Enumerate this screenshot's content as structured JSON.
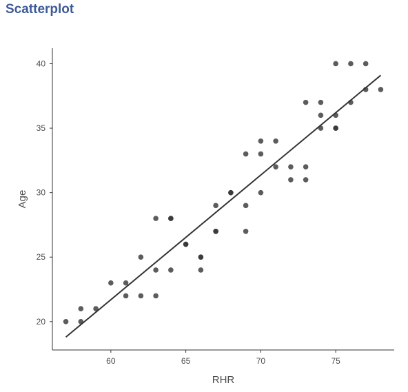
{
  "header": {
    "title": "Scatterplot"
  },
  "chart_data": {
    "type": "scatter",
    "xlabel": "RHR",
    "ylabel": "Age",
    "xlim": [
      56.1,
      78.9
    ],
    "ylim": [
      17.8,
      41.2
    ],
    "xticks": [
      60,
      65,
      70,
      75
    ],
    "yticks": [
      20,
      25,
      30,
      35,
      40
    ],
    "grid": false,
    "legend": "none",
    "point_color": "#333333",
    "line_color": "#333333",
    "points": [
      {
        "x": 57,
        "y": 20
      },
      {
        "x": 58,
        "y": 21
      },
      {
        "x": 58,
        "y": 20
      },
      {
        "x": 59,
        "y": 21
      },
      {
        "x": 60,
        "y": 23
      },
      {
        "x": 61,
        "y": 23
      },
      {
        "x": 61,
        "y": 22
      },
      {
        "x": 62,
        "y": 25
      },
      {
        "x": 62,
        "y": 22
      },
      {
        "x": 63,
        "y": 28
      },
      {
        "x": 63,
        "y": 24
      },
      {
        "x": 63,
        "y": 22
      },
      {
        "x": 64,
        "y": 28
      },
      {
        "x": 64,
        "y": 28
      },
      {
        "x": 64,
        "y": 24
      },
      {
        "x": 65,
        "y": 26
      },
      {
        "x": 65,
        "y": 26
      },
      {
        "x": 66,
        "y": 25
      },
      {
        "x": 66,
        "y": 25
      },
      {
        "x": 66,
        "y": 24
      },
      {
        "x": 67,
        "y": 29
      },
      {
        "x": 67,
        "y": 27
      },
      {
        "x": 67,
        "y": 27
      },
      {
        "x": 68,
        "y": 30
      },
      {
        "x": 68,
        "y": 30
      },
      {
        "x": 69,
        "y": 33
      },
      {
        "x": 69,
        "y": 29
      },
      {
        "x": 69,
        "y": 27
      },
      {
        "x": 70,
        "y": 34
      },
      {
        "x": 70,
        "y": 33
      },
      {
        "x": 70,
        "y": 30
      },
      {
        "x": 71,
        "y": 34
      },
      {
        "x": 71,
        "y": 32
      },
      {
        "x": 72,
        "y": 32
      },
      {
        "x": 72,
        "y": 31
      },
      {
        "x": 73,
        "y": 37
      },
      {
        "x": 73,
        "y": 32
      },
      {
        "x": 73,
        "y": 31
      },
      {
        "x": 74,
        "y": 37
      },
      {
        "x": 74,
        "y": 36
      },
      {
        "x": 74,
        "y": 35
      },
      {
        "x": 75,
        "y": 40
      },
      {
        "x": 75,
        "y": 36
      },
      {
        "x": 75,
        "y": 35
      },
      {
        "x": 75,
        "y": 35
      },
      {
        "x": 76,
        "y": 40
      },
      {
        "x": 76,
        "y": 37
      },
      {
        "x": 77,
        "y": 40
      },
      {
        "x": 77,
        "y": 38
      },
      {
        "x": 78,
        "y": 38
      }
    ],
    "trend_line": {
      "type": "linear",
      "start": {
        "x": 57,
        "y": 18.8
      },
      "end": {
        "x": 78,
        "y": 39.1
      }
    }
  }
}
